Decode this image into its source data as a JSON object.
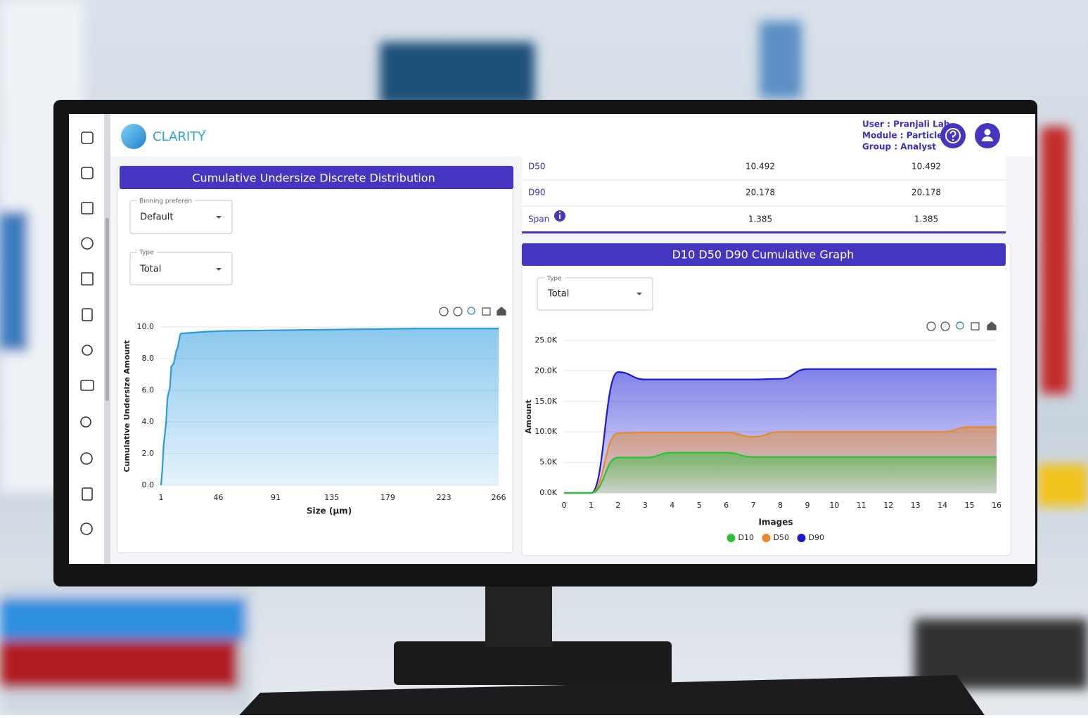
{
  "header": {
    "brand": "CLARITY",
    "trademark": "™",
    "user": "User : Pranjali Lab",
    "module": "Module : Particle",
    "group": "Group : Analyst"
  },
  "stats_table": {
    "rows": [
      [
        "D50",
        "10.492",
        "10.492"
      ],
      [
        "D90",
        "20.178",
        "20.178"
      ],
      [
        "Span",
        "1.385",
        "1.385"
      ]
    ]
  },
  "left_controls": {
    "binning_label": "Binning preferen",
    "binning_value": "Default",
    "type_label": "Type",
    "type_value": "Total"
  },
  "right_controls": {
    "type_label": "Type",
    "type_value": "Total"
  },
  "chart_data": [
    {
      "type": "area",
      "title": "Cumulative Undersize Discrete Distribution",
      "xlabel": "Size (µm)",
      "ylabel": "Cumulative Undersize Amount",
      "x": [
        1,
        2,
        3,
        5,
        6,
        8,
        9,
        11,
        13,
        14,
        16,
        17,
        19,
        35,
        50,
        100,
        150,
        200,
        266
      ],
      "values": [
        0,
        1,
        2.5,
        4,
        5.5,
        6.2,
        7.5,
        7.7,
        8.5,
        8.7,
        9.5,
        9.6,
        9.6,
        9.7,
        9.75,
        9.8,
        9.85,
        9.9,
        9.9
      ],
      "color": "#2b9be0",
      "xlim": [
        1,
        266
      ],
      "xticks": [
        1,
        46,
        91,
        135,
        179,
        223,
        266
      ],
      "ylim": [
        0,
        10
      ],
      "yticks": [
        {
          "value": 0,
          "label": "0.0"
        },
        {
          "value": 2,
          "label": "2.0"
        },
        {
          "value": 4,
          "label": "4.0"
        },
        {
          "value": 6,
          "label": "6.0"
        },
        {
          "value": 8,
          "label": "8.0"
        },
        {
          "value": 10,
          "label": "10.0"
        }
      ],
      "grid": true
    },
    {
      "type": "area",
      "title": "D10 D50 D90 Cumulative Graph",
      "xlabel": "Images",
      "ylabel": "Amount",
      "smooth": true,
      "x": [
        0,
        1,
        2,
        3,
        4,
        5,
        6,
        7,
        8,
        9,
        10,
        11,
        12,
        13,
        14,
        15,
        16
      ],
      "series": [
        {
          "name": "D10",
          "color": "#2fbf3a",
          "values": [
            0,
            0,
            5800,
            5800,
            6600,
            6600,
            6600,
            5900,
            5900,
            5900,
            5900,
            5900,
            5900,
            5900,
            5900,
            5900,
            5900
          ]
        },
        {
          "name": "D50",
          "color": "#e8892a",
          "values": [
            0,
            0,
            9800,
            9900,
            9900,
            9900,
            9900,
            9200,
            10000,
            10000,
            10000,
            10000,
            10000,
            10000,
            10000,
            10800,
            10800
          ]
        },
        {
          "name": "D90",
          "color": "#1a1ad6",
          "values": [
            0,
            0,
            19800,
            18600,
            18600,
            18600,
            18600,
            18600,
            18700,
            20300,
            20300,
            20300,
            20300,
            20300,
            20300,
            20300,
            20300
          ]
        }
      ],
      "xlim": [
        0,
        16
      ],
      "xticks": [
        0,
        1,
        2,
        3,
        4,
        5,
        6,
        7,
        8,
        9,
        10,
        11,
        12,
        13,
        14,
        15,
        16
      ],
      "ylim": [
        0,
        25000
      ],
      "yticks": [
        {
          "value": 0,
          "label": "0.0K"
        },
        {
          "value": 5000,
          "label": "5.0K"
        },
        {
          "value": 10000,
          "label": "10.0K"
        },
        {
          "value": 15000,
          "label": "15.0K"
        },
        {
          "value": 20000,
          "label": "20.0K"
        },
        {
          "value": 25000,
          "label": "25.0K"
        }
      ],
      "grid": true,
      "legend": "bottom"
    }
  ]
}
